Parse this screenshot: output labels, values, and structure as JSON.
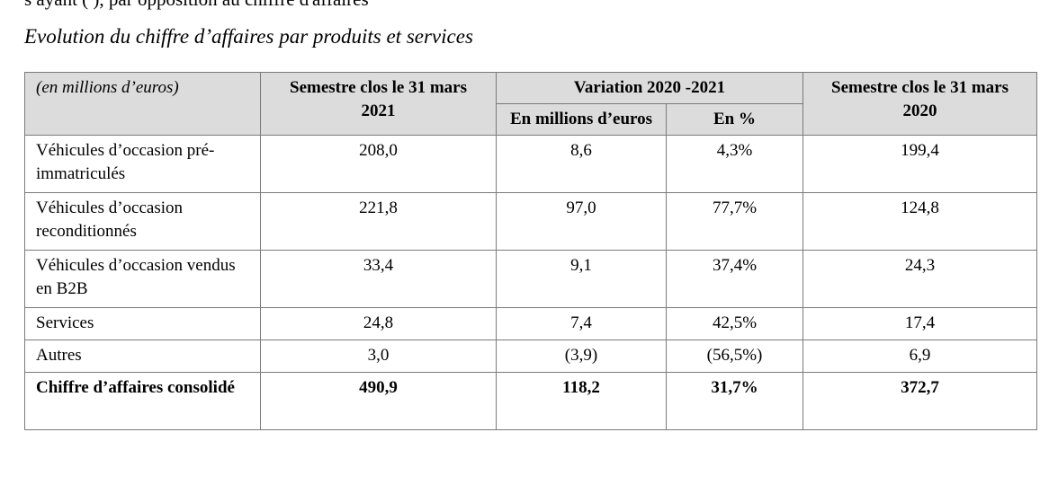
{
  "cut_text": "s ayant ( ), par opposition au chiffre d'affaires",
  "section_title": "Evolution du chiffre d’affaires par produits et services",
  "table": {
    "unit_label": "(en millions d’euros)",
    "col_s2021": "Semestre clos le 31 mars 2021",
    "col_variation": "Variation 2020 -2021",
    "col_var_millions": "En millions d’euros",
    "col_var_pct": "En %",
    "col_s2020": "Semestre clos le 31 mars 2020",
    "rows": [
      {
        "label": "Véhicules d’occasion pré-immatriculés",
        "s2021": "208,0",
        "var_m": "8,6",
        "var_pct": "4,3%",
        "s2020": "199,4"
      },
      {
        "label": "Véhicules d’occasion reconditionnés",
        "s2021": "221,8",
        "var_m": "97,0",
        "var_pct": "77,7%",
        "s2020": "124,8"
      },
      {
        "label": "Véhicules d’occasion vendus en B2B",
        "s2021": "33,4",
        "var_m": "9,1",
        "var_pct": "37,4%",
        "s2020": "24,3"
      },
      {
        "label": "Services",
        "s2021": "24,8",
        "var_m": "7,4",
        "var_pct": "42,5%",
        "s2020": "17,4"
      },
      {
        "label": "Autres",
        "s2021": "3,0",
        "var_m": "(3,9)",
        "var_pct": "(56,5%)",
        "s2020": "6,9"
      }
    ],
    "total": {
      "label": "Chiffre d’affaires consolidé",
      "s2021": "490,9",
      "var_m": "118,2",
      "var_pct": "31,7%",
      "s2020": "372,7"
    }
  }
}
